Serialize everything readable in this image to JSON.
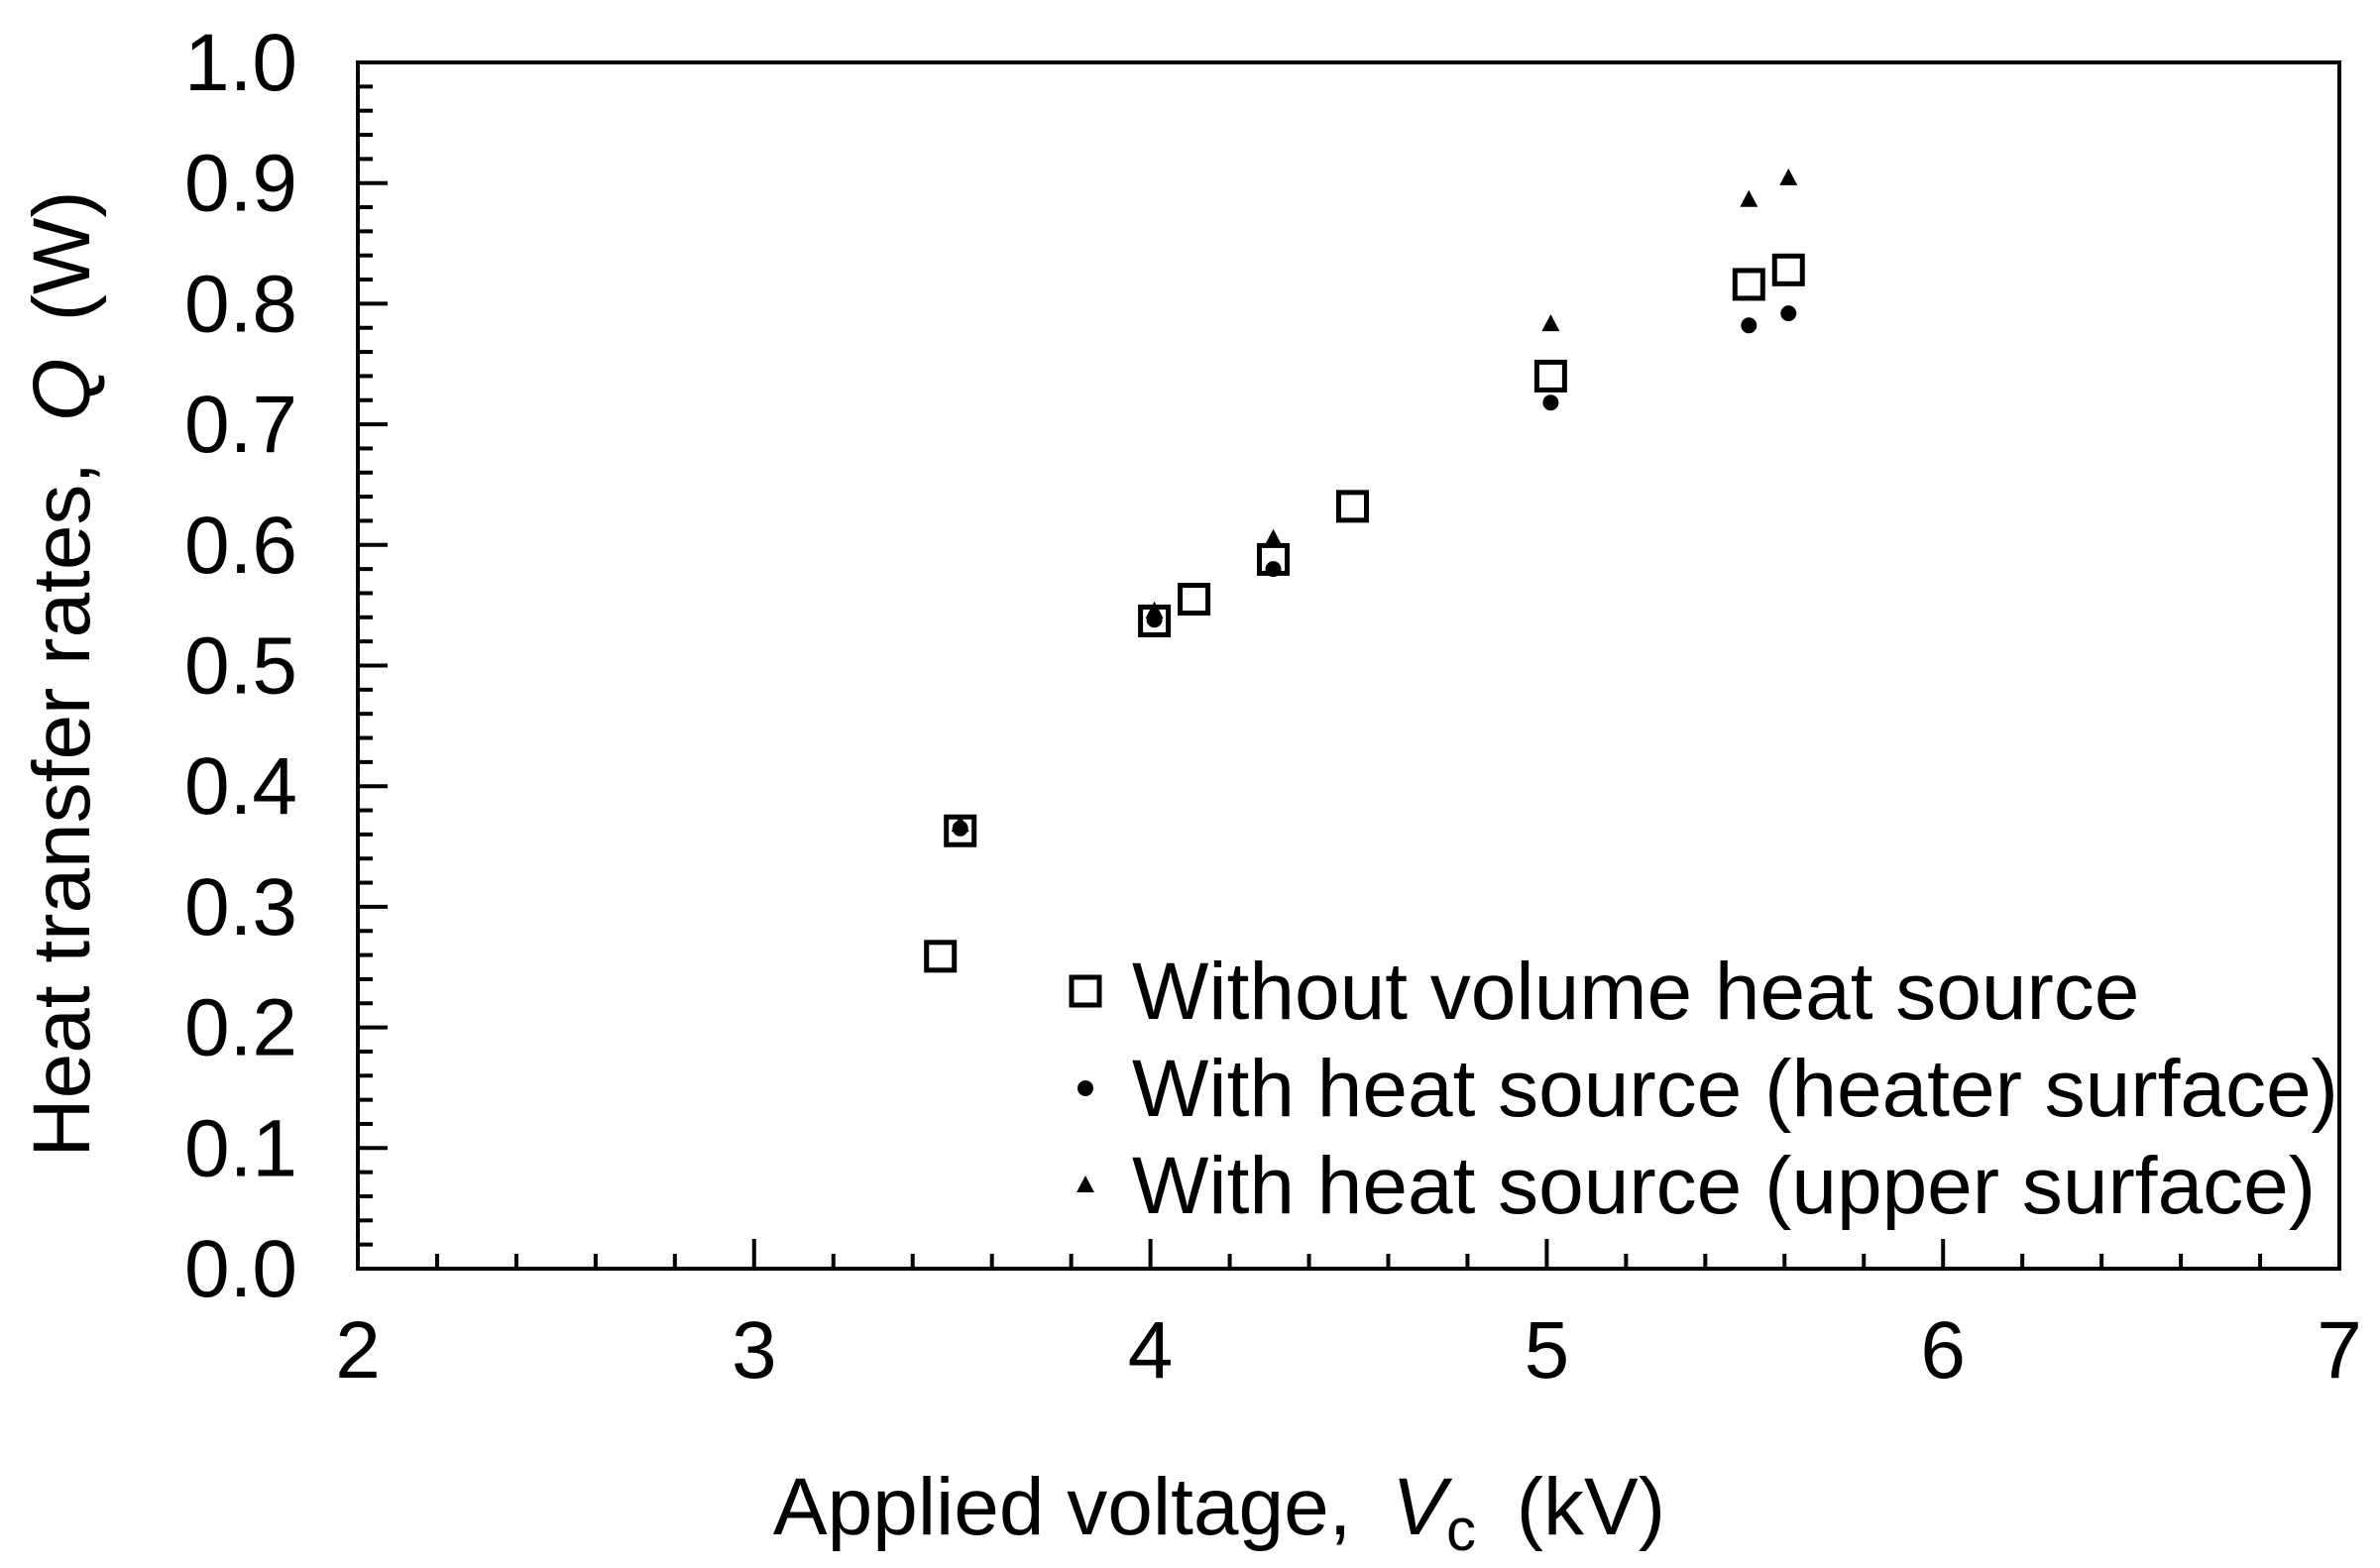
{
  "chart_data": {
    "type": "scatter",
    "title": "",
    "xlabel": "Applied voltage,",
    "xlabel_var": "V",
    "xlabel_sub": "c",
    "xlabel_unit": "(kV)",
    "ylabel": "Heat transfer rates,",
    "ylabel_var": "Q",
    "ylabel_unit": "(W)",
    "xlim": [
      2,
      7
    ],
    "ylim": [
      0.0,
      1.0
    ],
    "xticks": [
      "2",
      "3",
      "4",
      "5",
      "6",
      "7"
    ],
    "yticks": [
      "0.0",
      "0.1",
      "0.2",
      "0.3",
      "0.4",
      "0.5",
      "0.6",
      "0.7",
      "0.8",
      "0.9",
      "1.0"
    ],
    "grid": false,
    "legend_position": "bottom-right",
    "series": [
      {
        "name": "Without volume heat source",
        "marker": "open-square",
        "color": "#000000",
        "x": [
          3.47,
          3.52,
          4.01,
          4.11,
          4.31,
          4.51,
          5.01,
          5.51,
          5.61
        ],
        "y": [
          0.259,
          0.363,
          0.537,
          0.555,
          0.588,
          0.632,
          0.74,
          0.816,
          0.828
        ]
      },
      {
        "name": "With heat source (heater surface)",
        "marker": "filled-circle",
        "color": "#000000",
        "x": [
          3.52,
          4.01,
          4.31,
          5.01,
          5.51,
          5.61
        ],
        "y": [
          0.365,
          0.538,
          0.58,
          0.718,
          0.782,
          0.792
        ]
      },
      {
        "name": "With heat source (upper surface)",
        "marker": "filled-triangle",
        "color": "#000000",
        "x": [
          3.52,
          4.01,
          4.31,
          5.01,
          5.51,
          5.61
        ],
        "y": [
          0.368,
          0.545,
          0.605,
          0.783,
          0.886,
          0.904
        ]
      }
    ]
  }
}
